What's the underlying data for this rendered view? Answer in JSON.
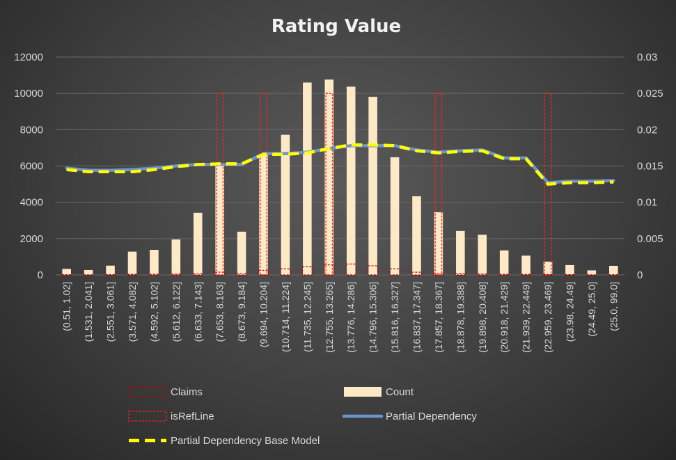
{
  "chart_data": {
    "type": "bar",
    "title": "Rating Value",
    "categories": [
      "(0.51, 1.02]",
      "(1.531, 2.041]",
      "(2.551, 3.061]",
      "(3.571, 4.082]",
      "(4.592, 5.102]",
      "(5.612, 6.122]",
      "(6.633, 7.143]",
      "(7.653, 8.163]",
      "(8.673, 9.184]",
      "(9.694, 10.204]",
      "(10.714, 11.224]",
      "(11.735, 12.245]",
      "(12.755, 13.265]",
      "(13.776, 14.286]",
      "(14.796, 15.306]",
      "(15.816, 16.327]",
      "(16.837, 17.347]",
      "(17.857, 18.367]",
      "(18.878, 19.388]",
      "(19.898, 20.408]",
      "(20.918, 21.429]",
      "(21.939, 22.449]",
      "(22.959, 23.469]",
      "(23.98, 24.49]",
      "(24.49, 25.0]",
      "(25.0, 99.0]"
    ],
    "y_left": {
      "min": 0,
      "max": 12000,
      "ticks": [
        "0",
        "2000",
        "4000",
        "6000",
        "8000",
        "10000",
        "12000"
      ]
    },
    "y_right": {
      "min": 0,
      "max": 0.03,
      "ticks": [
        "0",
        "0.005",
        "0.01",
        "0.015",
        "0.02",
        "0.025",
        "0.03"
      ]
    },
    "grid": true,
    "legend_position": "bottom",
    "colors": {
      "count": "#fde9c6",
      "claims": "#c00000",
      "isRefLine": "#ff2020",
      "partial_dependency": "#6d93cf",
      "partial_dependency_base": "#ffff00"
    },
    "series": [
      {
        "key": "claims",
        "name": "Claims",
        "type": "bar",
        "axis": "left",
        "values": [
          10,
          8,
          15,
          30,
          35,
          45,
          60,
          150,
          80,
          250,
          330,
          450,
          550,
          600,
          500,
          330,
          150,
          80,
          60,
          50,
          30,
          25,
          20,
          15,
          8,
          12
        ]
      },
      {
        "key": "count",
        "name": "Count",
        "type": "bar",
        "axis": "left",
        "values": [
          330,
          270,
          510,
          1280,
          1380,
          1950,
          3420,
          6100,
          2380,
          6650,
          7720,
          10600,
          10760,
          10370,
          9810,
          6480,
          4330,
          3450,
          2420,
          2210,
          1350,
          1060,
          730,
          540,
          250,
          500
        ]
      },
      {
        "key": "isRefLine",
        "name": "isRefLine",
        "type": "bar",
        "axis": "left",
        "values": [
          0,
          0,
          0,
          0,
          0,
          0,
          0,
          10000,
          0,
          10000,
          0,
          0,
          10000,
          0,
          0,
          0,
          0,
          10000,
          0,
          0,
          0,
          0,
          10000,
          0,
          0,
          0
        ]
      },
      {
        "key": "partial_dependency",
        "name": "Partial Dependency",
        "type": "line",
        "axis": "right",
        "values": [
          0.0147,
          0.0144,
          0.0144,
          0.0145,
          0.0147,
          0.015,
          0.0152,
          0.0152,
          0.0152,
          0.0167,
          0.0167,
          0.0169,
          0.0174,
          0.0178,
          0.0178,
          0.0178,
          0.0172,
          0.0169,
          0.0171,
          0.0172,
          0.0161,
          0.0161,
          0.0127,
          0.0129,
          0.0129,
          0.013
        ]
      },
      {
        "key": "partial_dependency_base",
        "name": "Partial Dependency Base Model",
        "type": "line",
        "axis": "right",
        "values": [
          0.0145,
          0.0142,
          0.0142,
          0.0142,
          0.0145,
          0.0149,
          0.0152,
          0.0153,
          0.0153,
          0.0166,
          0.0166,
          0.0168,
          0.0174,
          0.0179,
          0.0179,
          0.0178,
          0.0171,
          0.0168,
          0.017,
          0.0171,
          0.016,
          0.016,
          0.0125,
          0.0127,
          0.0127,
          0.0128
        ]
      }
    ]
  }
}
